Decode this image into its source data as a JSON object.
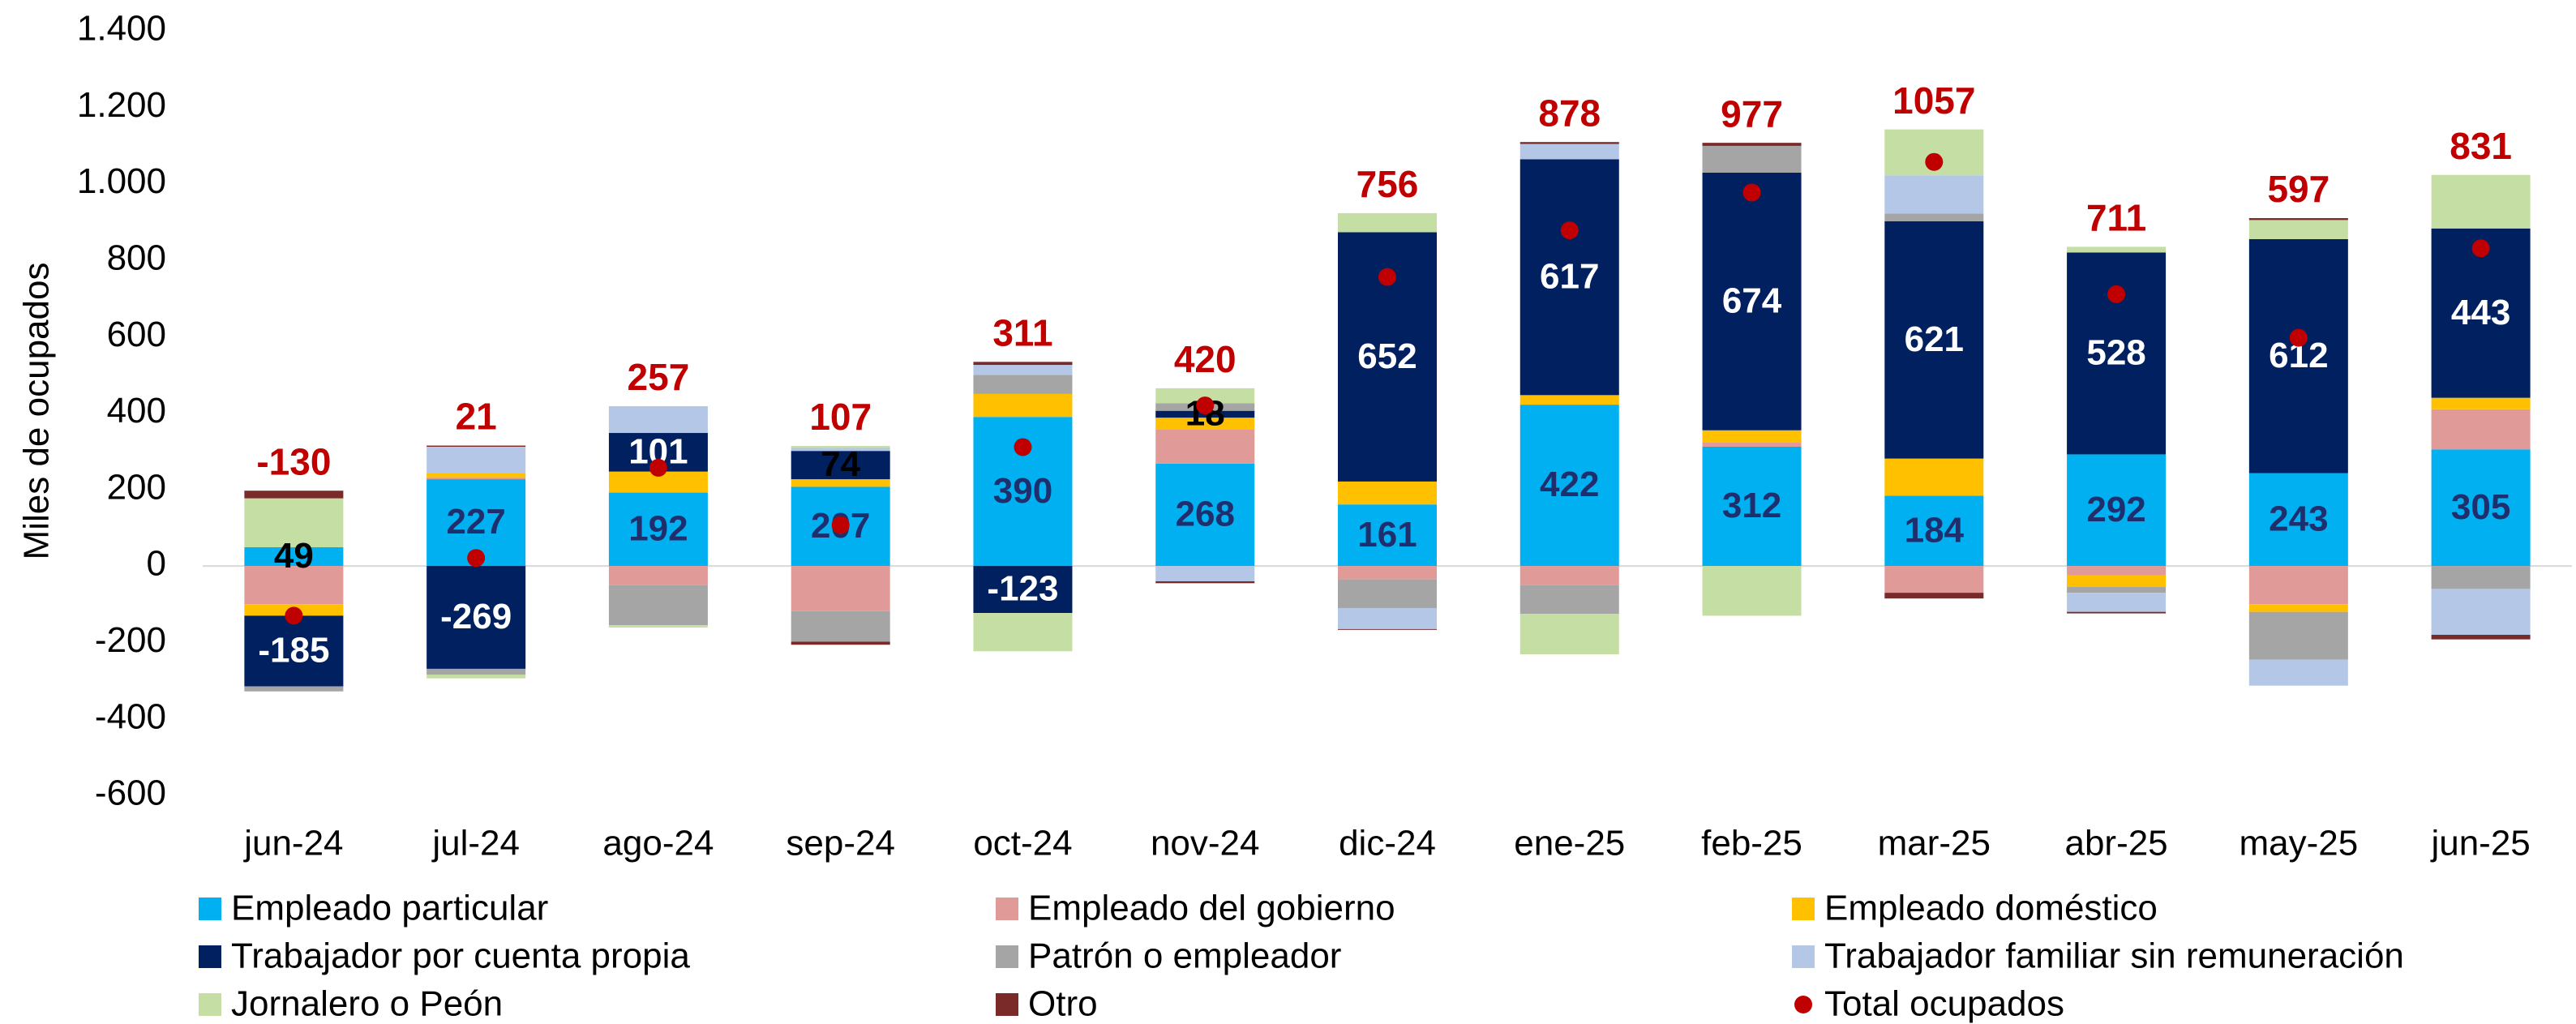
{
  "chart_data": {
    "type": "stacked_bar",
    "ylabel": "Miles de ocupados",
    "categories": [
      "jun-24",
      "jul-24",
      "ago-24",
      "sep-24",
      "oct-24",
      "nov-24",
      "dic-24",
      "ene-25",
      "feb-25",
      "mar-25",
      "abr-25",
      "may-25",
      "jun-25"
    ],
    "ylim": [
      -600,
      1400
    ],
    "yticks": [
      {
        "value": 1400,
        "label": "1.400"
      },
      {
        "value": 1200,
        "label": "1.200"
      },
      {
        "value": 1000,
        "label": "1.000"
      },
      800,
      600,
      400,
      200,
      0,
      -200,
      -400,
      -600
    ],
    "grid": false,
    "legend": "bottom",
    "series": [
      {
        "name": "Empleado particular",
        "color": "#00b0f0",
        "label_color": "#1f2f6e",
        "labels": true,
        "values": [
          49,
          227,
          192,
          207,
          390,
          268,
          161,
          422,
          312,
          184,
          292,
          243,
          305
        ]
      },
      {
        "name": "Empleado del gobierno",
        "color": "#e09b99",
        "values": [
          -100,
          5,
          -50,
          -118,
          0,
          90,
          -35,
          -50,
          12,
          -70,
          -25,
          -100,
          105
        ]
      },
      {
        "name": "Empleado doméstico",
        "color": "#ffc000",
        "values": [
          -30,
          10,
          55,
          20,
          60,
          30,
          60,
          25,
          31,
          97,
          -30,
          -20,
          30
        ]
      },
      {
        "name": "Trabajador por cuenta propia",
        "color": "#002060",
        "label_color": "#ffffff",
        "labels": true,
        "values": [
          -185,
          -269,
          101,
          74,
          -123,
          18,
          652,
          617,
          674,
          621,
          528,
          612,
          443
        ]
      },
      {
        "name": "Patrón o empleador",
        "color": "#a5a5a5",
        "values": [
          -13,
          -15,
          -105,
          -80,
          50,
          20,
          -75,
          -75,
          70,
          20,
          -15,
          -125,
          -60
        ]
      },
      {
        "name": "Trabajador familiar sin remuneración",
        "color": "#b4c7e7",
        "values": [
          0,
          70,
          70,
          8,
          26,
          -40,
          -55,
          40,
          0,
          100,
          -50,
          -68,
          -120
        ]
      },
      {
        "name": "Jornalero o Peón",
        "color": "#c5dea4",
        "values": [
          128,
          -10,
          -6,
          5,
          -100,
          39,
          50,
          -106,
          -130,
          120,
          15,
          50,
          140
        ]
      },
      {
        "name": "Otro",
        "color": "#7b2a2a",
        "values": [
          20,
          3,
          0,
          -8,
          8,
          -5,
          -2,
          5,
          8,
          -15,
          -4,
          5,
          -12
        ]
      },
      {
        "name": "Total ocupados",
        "type": "scatter",
        "color": "#c00000",
        "labels": true,
        "values": [
          -130,
          21,
          257,
          107,
          311,
          420,
          756,
          878,
          977,
          1057,
          711,
          597,
          831
        ]
      }
    ]
  }
}
